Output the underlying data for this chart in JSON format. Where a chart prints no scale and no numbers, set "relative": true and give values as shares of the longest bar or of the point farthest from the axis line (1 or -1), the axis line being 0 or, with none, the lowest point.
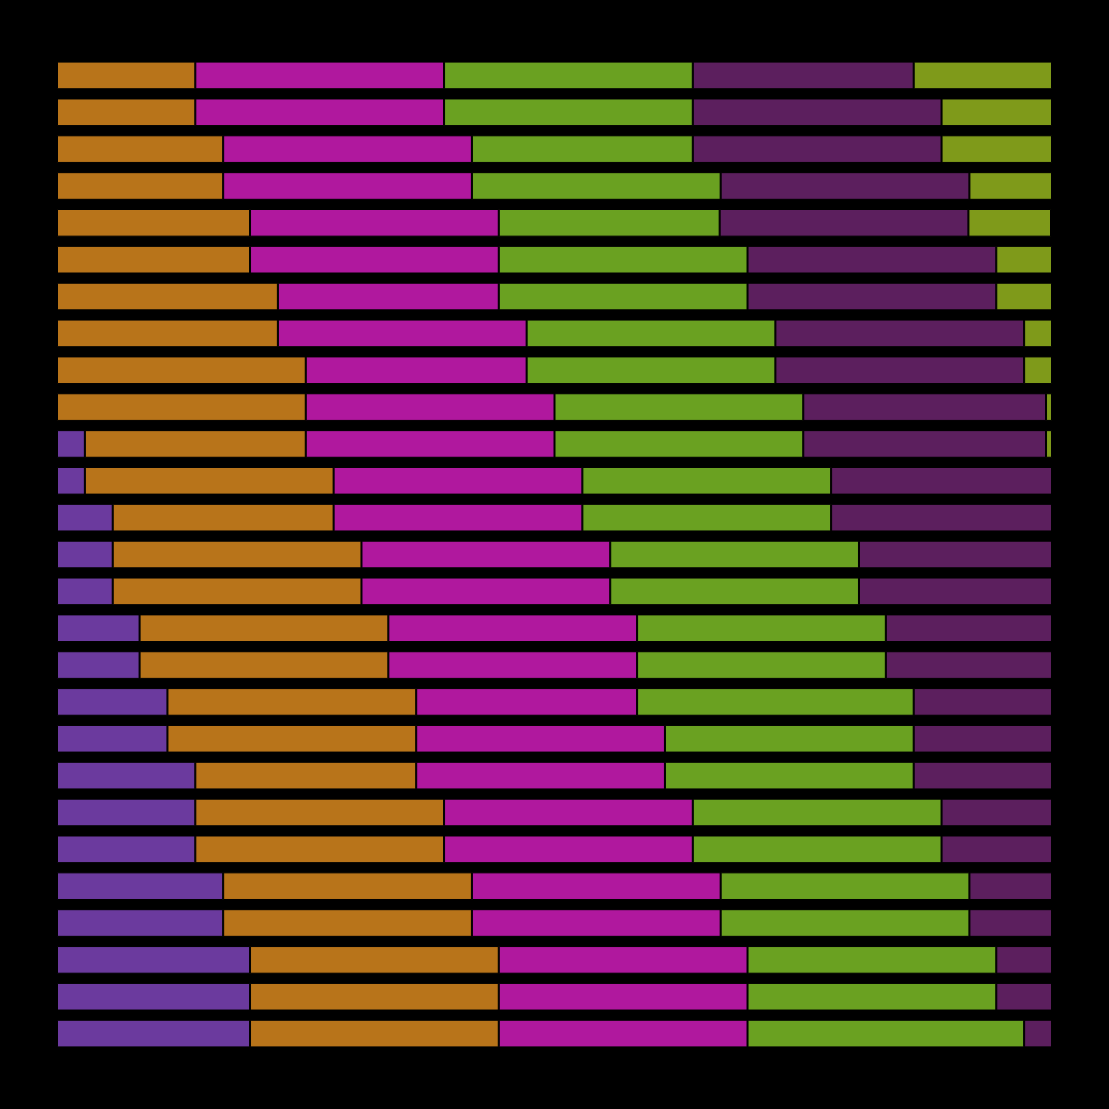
{
  "chart_data": {
    "type": "bar",
    "orientation": "horizontal",
    "stacked": true,
    "relative": true,
    "categories": [
      null,
      null,
      null,
      null,
      null,
      null,
      null,
      null,
      null,
      null,
      null,
      null,
      null,
      null,
      null,
      null,
      null,
      null,
      null,
      null,
      null,
      null,
      null,
      null,
      null,
      null,
      null
    ],
    "series": [
      {
        "color": "#6b3a9e",
        "values": [
          0,
          0,
          0,
          0,
          0,
          0,
          0,
          0,
          0,
          0,
          0.028,
          0.028,
          0.056,
          0.056,
          0.056,
          0.083,
          0.083,
          0.111,
          0.111,
          0.139,
          0.139,
          0.139,
          0.167,
          0.167,
          0.194,
          0.194,
          0.194
        ]
      },
      {
        "color": "#b8741a",
        "values": [
          0.139,
          0.139,
          0.167,
          0.167,
          0.194,
          0.194,
          0.222,
          0.222,
          0.25,
          0.25,
          0.222,
          0.25,
          0.222,
          0.25,
          0.25,
          0.25,
          0.25,
          0.25,
          0.25,
          0.222,
          0.25,
          0.25,
          0.25,
          0.25,
          0.25,
          0.25,
          0.25
        ]
      },
      {
        "color": "#b0189e",
        "values": [
          0.25,
          0.25,
          0.25,
          0.25,
          0.25,
          0.25,
          0.222,
          0.25,
          0.222,
          0.25,
          0.25,
          0.25,
          0.25,
          0.25,
          0.25,
          0.25,
          0.25,
          0.222,
          0.25,
          0.25,
          0.25,
          0.25,
          0.25,
          0.25,
          0.25,
          0.25,
          0.25
        ]
      },
      {
        "color": "#6aa121",
        "values": [
          0.25,
          0.25,
          0.222,
          0.25,
          0.222,
          0.25,
          0.25,
          0.25,
          0.25,
          0.25,
          0.25,
          0.25,
          0.25,
          0.25,
          0.25,
          0.25,
          0.25,
          0.278,
          0.25,
          0.25,
          0.25,
          0.25,
          0.25,
          0.25,
          0.25,
          0.25,
          0.278
        ]
      },
      {
        "color": "#5c1f5e",
        "values": [
          0.222,
          0.25,
          0.25,
          0.25,
          0.25,
          0.25,
          0.25,
          0.25,
          0.25,
          0.244,
          0.244,
          0.222,
          0.222,
          0.194,
          0.194,
          0.167,
          0.167,
          0.139,
          0.139,
          0.139,
          0.111,
          0.111,
          0.083,
          0.083,
          0.056,
          0.056,
          0.028
        ]
      },
      {
        "color": "#7f9a1a",
        "values": [
          0.139,
          0.111,
          0.111,
          0.083,
          0.083,
          0.056,
          0.056,
          0.028,
          0.028,
          0.006,
          0.006,
          0,
          0,
          0,
          0,
          0,
          0,
          0,
          0,
          0,
          0,
          0,
          0,
          0,
          0,
          0,
          0
        ]
      }
    ]
  }
}
